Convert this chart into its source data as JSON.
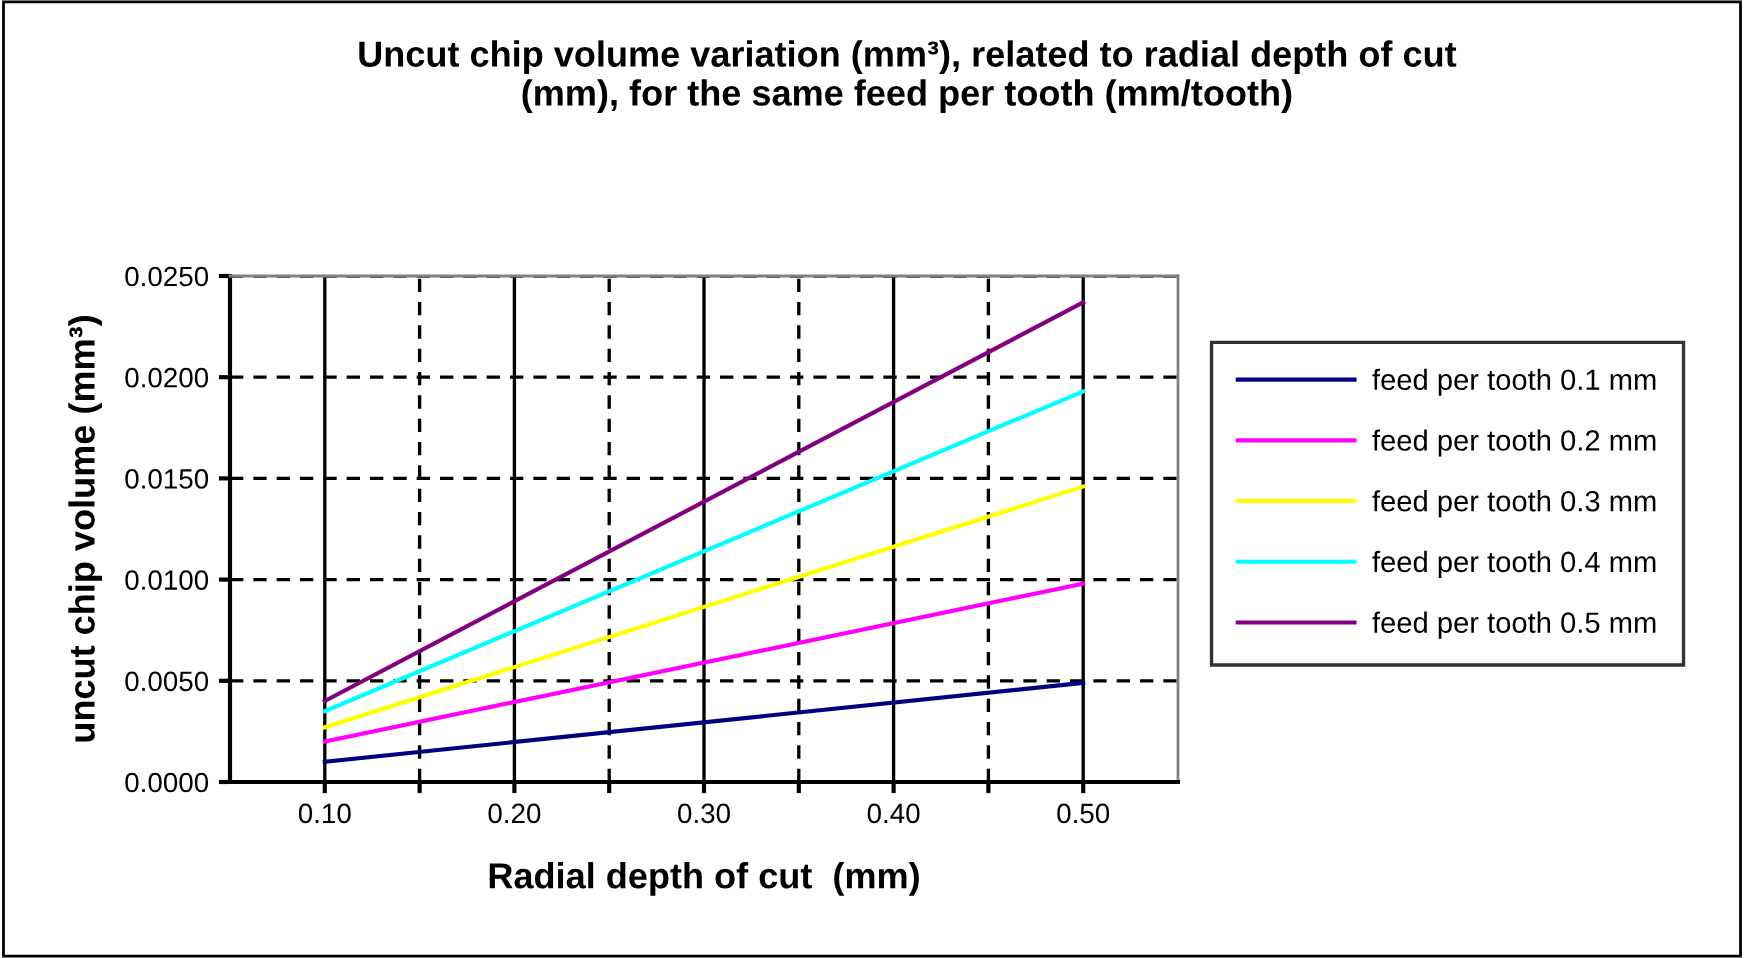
{
  "chart_data": {
    "type": "line",
    "title": "Uncut chip volume variation (mm³), related to radial depth of cut\n(mm), for the same feed per tooth (mm/tooth)",
    "xlabel": "Radial depth of cut  (mm)",
    "ylabel": "uncut chip volume (mm³)",
    "x": [
      0.1,
      0.5
    ],
    "series": [
      {
        "name": "feed per tooth 0.1 mm",
        "color": "#000080",
        "values": [
          0.001,
          0.0049
        ]
      },
      {
        "name": "feed per tooth 0.2 mm",
        "color": "#ff00ff",
        "values": [
          0.002,
          0.0098
        ]
      },
      {
        "name": "feed per tooth 0.3 mm",
        "color": "#ffff00",
        "values": [
          0.0027,
          0.0146
        ]
      },
      {
        "name": "feed per tooth 0.4 mm",
        "color": "#00ffff",
        "values": [
          0.0035,
          0.0193
        ]
      },
      {
        "name": "feed per tooth 0.5 mm",
        "color": "#800080",
        "values": [
          0.004,
          0.0237
        ]
      }
    ],
    "xlim": [
      0.05,
      0.55
    ],
    "xticks": [
      {
        "value": 0.1,
        "label": "0.10"
      },
      {
        "value": 0.15,
        "label": null
      },
      {
        "value": 0.2,
        "label": "0.20"
      },
      {
        "value": 0.25,
        "label": null
      },
      {
        "value": 0.3,
        "label": "0.30"
      },
      {
        "value": 0.35,
        "label": null
      },
      {
        "value": 0.4,
        "label": "0.40"
      },
      {
        "value": 0.45,
        "label": null
      },
      {
        "value": 0.5,
        "label": "0.50"
      }
    ],
    "ylim": [
      0,
      0.025
    ],
    "yticks": [
      {
        "value": 0,
        "label": "0.0000"
      },
      {
        "value": 0.005,
        "label": "0.0050"
      },
      {
        "value": 0.01,
        "label": "0.0100"
      },
      {
        "value": 0.015,
        "label": "0.0150"
      },
      {
        "value": 0.02,
        "label": "0.0200"
      },
      {
        "value": 0.025,
        "label": "0.0250"
      }
    ],
    "grid": true,
    "legend": "right",
    "marker": "none",
    "line_style": "solid"
  }
}
